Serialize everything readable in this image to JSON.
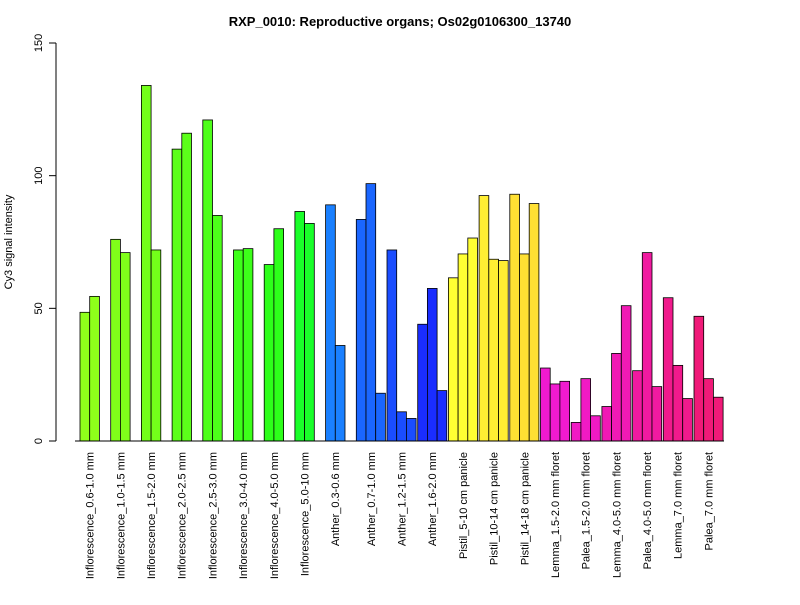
{
  "chart_data": {
    "type": "bar",
    "title": "RXP_0010: Reproductive organs; Os02g0106300_13740",
    "xlabel": "",
    "ylabel": "Cy3 signal intensity",
    "ylim": [
      0,
      150
    ],
    "yticks": [
      0,
      50,
      100,
      150
    ],
    "grid": false,
    "legend": "none",
    "groups": [
      {
        "label": "Inflorescence_0.6-1.0 mm",
        "color": "#8fff1a",
        "values": [
          48.5,
          54.5
        ]
      },
      {
        "label": "Inflorescence_1.0-1.5 mm",
        "color": "#80ff1a",
        "values": [
          76,
          71
        ]
      },
      {
        "label": "Inflorescence_1.5-2.0 mm",
        "color": "#73ff1a",
        "values": [
          134,
          72
        ]
      },
      {
        "label": "Inflorescence_2.0-2.5 mm",
        "color": "#5cff1a",
        "values": [
          110,
          116
        ]
      },
      {
        "label": "Inflorescence_2.5-3.0 mm",
        "color": "#4dff1a",
        "values": [
          121,
          85
        ]
      },
      {
        "label": "Inflorescence_3.0-4.0 mm",
        "color": "#3dff1a",
        "values": [
          72,
          72.5
        ]
      },
      {
        "label": "Inflorescence_4.0-5.0 mm",
        "color": "#2dff1a",
        "values": [
          66.5,
          80
        ]
      },
      {
        "label": "Inflorescence_5.0-10 mm",
        "color": "#1aff2a",
        "values": [
          86.5,
          82
        ]
      },
      {
        "label": "Anther_0.3-0.6 mm",
        "color": "#1a80ff",
        "values": [
          89,
          36
        ]
      },
      {
        "label": "Anther_0.7-1.0 mm",
        "color": "#1a66ff",
        "values": [
          83.5,
          97,
          18
        ]
      },
      {
        "label": "Anther_1.2-1.5 mm",
        "color": "#1a4dff",
        "values": [
          72,
          11,
          8.5
        ]
      },
      {
        "label": "Anther_1.6-2.0 mm",
        "color": "#1a2dff",
        "values": [
          44,
          57.5,
          19
        ]
      },
      {
        "label": "Pistil_5-10 cm panicle",
        "color": "#ffff33",
        "values": [
          61.5,
          70.5,
          76.5
        ]
      },
      {
        "label": "Pistil_10-14 cm panicle",
        "color": "#ffee33",
        "values": [
          92.5,
          68.5,
          68
        ]
      },
      {
        "label": "Pistil_14-18 cm panicle",
        "color": "#ffe033",
        "values": [
          93,
          70.5,
          89.5
        ]
      },
      {
        "label": "Lemma_1.5-2.0 mm floret",
        "color": "#f01ad0",
        "values": [
          27.5,
          21.5,
          22.5
        ]
      },
      {
        "label": "Palea_1.5-2.0 mm floret",
        "color": "#f01ac4",
        "values": [
          7,
          23.5,
          9.5
        ]
      },
      {
        "label": "Lemma_4.0-5.0 mm floret",
        "color": "#f01ab4",
        "values": [
          13,
          33,
          51
        ]
      },
      {
        "label": "Palea_4.0-5.0 mm floret",
        "color": "#f01aa0",
        "values": [
          26.5,
          71,
          20.5
        ]
      },
      {
        "label": "Lemma_7.0 mm floret",
        "color": "#f01a8c",
        "values": [
          54,
          28.5,
          16
        ]
      },
      {
        "label": "Palea_7.0 mm floret",
        "color": "#f01a78",
        "values": [
          47,
          23.5,
          16.5
        ]
      }
    ]
  }
}
